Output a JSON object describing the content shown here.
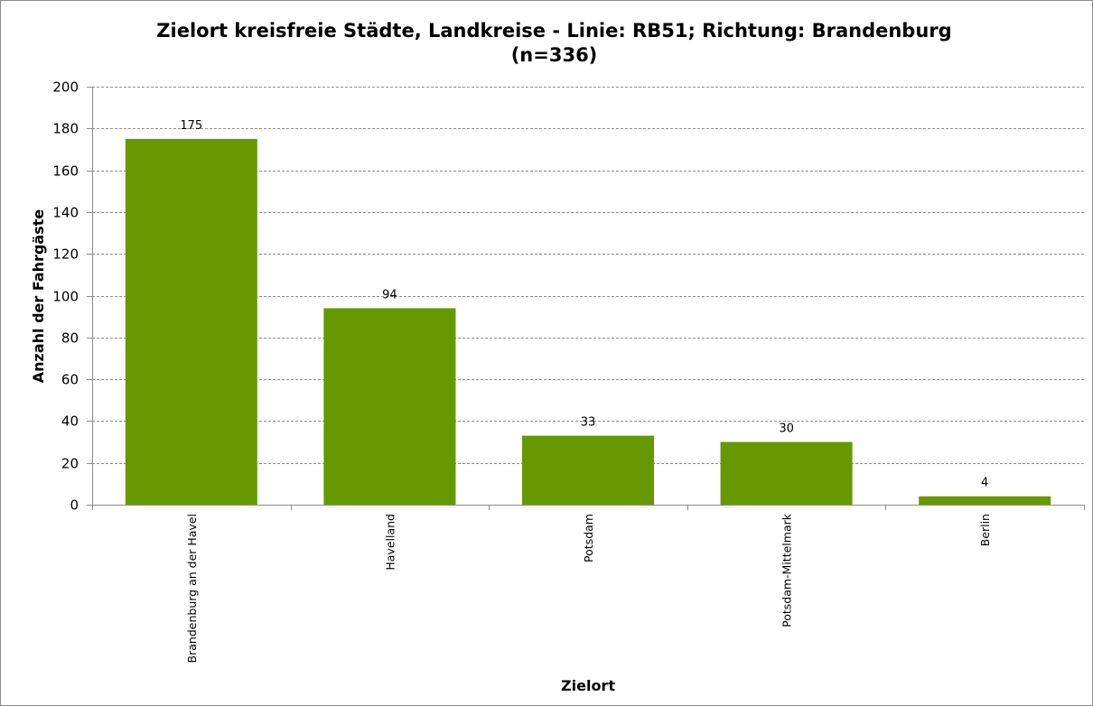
{
  "chart_data": {
    "type": "bar",
    "title": "Zielort kreisfreie Städte, Landkreise - Linie: RB51; Richtung: Brandenburg",
    "subtitle": "(n=336)",
    "xlabel": "Zielort",
    "ylabel": "Anzahl der Fahrgäste",
    "categories": [
      "Brandenburg an der Havel",
      "Havelland",
      "Potsdam",
      "Potsdam-Mittelmark",
      "Berlin"
    ],
    "values": [
      175,
      94,
      33,
      30,
      4
    ],
    "data_labels": [
      "175",
      "94",
      "33",
      "30",
      "4"
    ],
    "ylim": [
      0,
      200
    ],
    "yticks": [
      0,
      20,
      40,
      60,
      80,
      100,
      120,
      140,
      160,
      180,
      200
    ],
    "ytick_labels": [
      "0",
      "20",
      "40",
      "60",
      "80",
      "100",
      "120",
      "140",
      "160",
      "180",
      "200"
    ],
    "grid": true,
    "grid_style": "dashed",
    "legend": false,
    "colors": {
      "bar": "#669900",
      "grid": "#8c8c8c",
      "axis": "#8c8c8c",
      "frame": "#8c8c8c"
    }
  }
}
